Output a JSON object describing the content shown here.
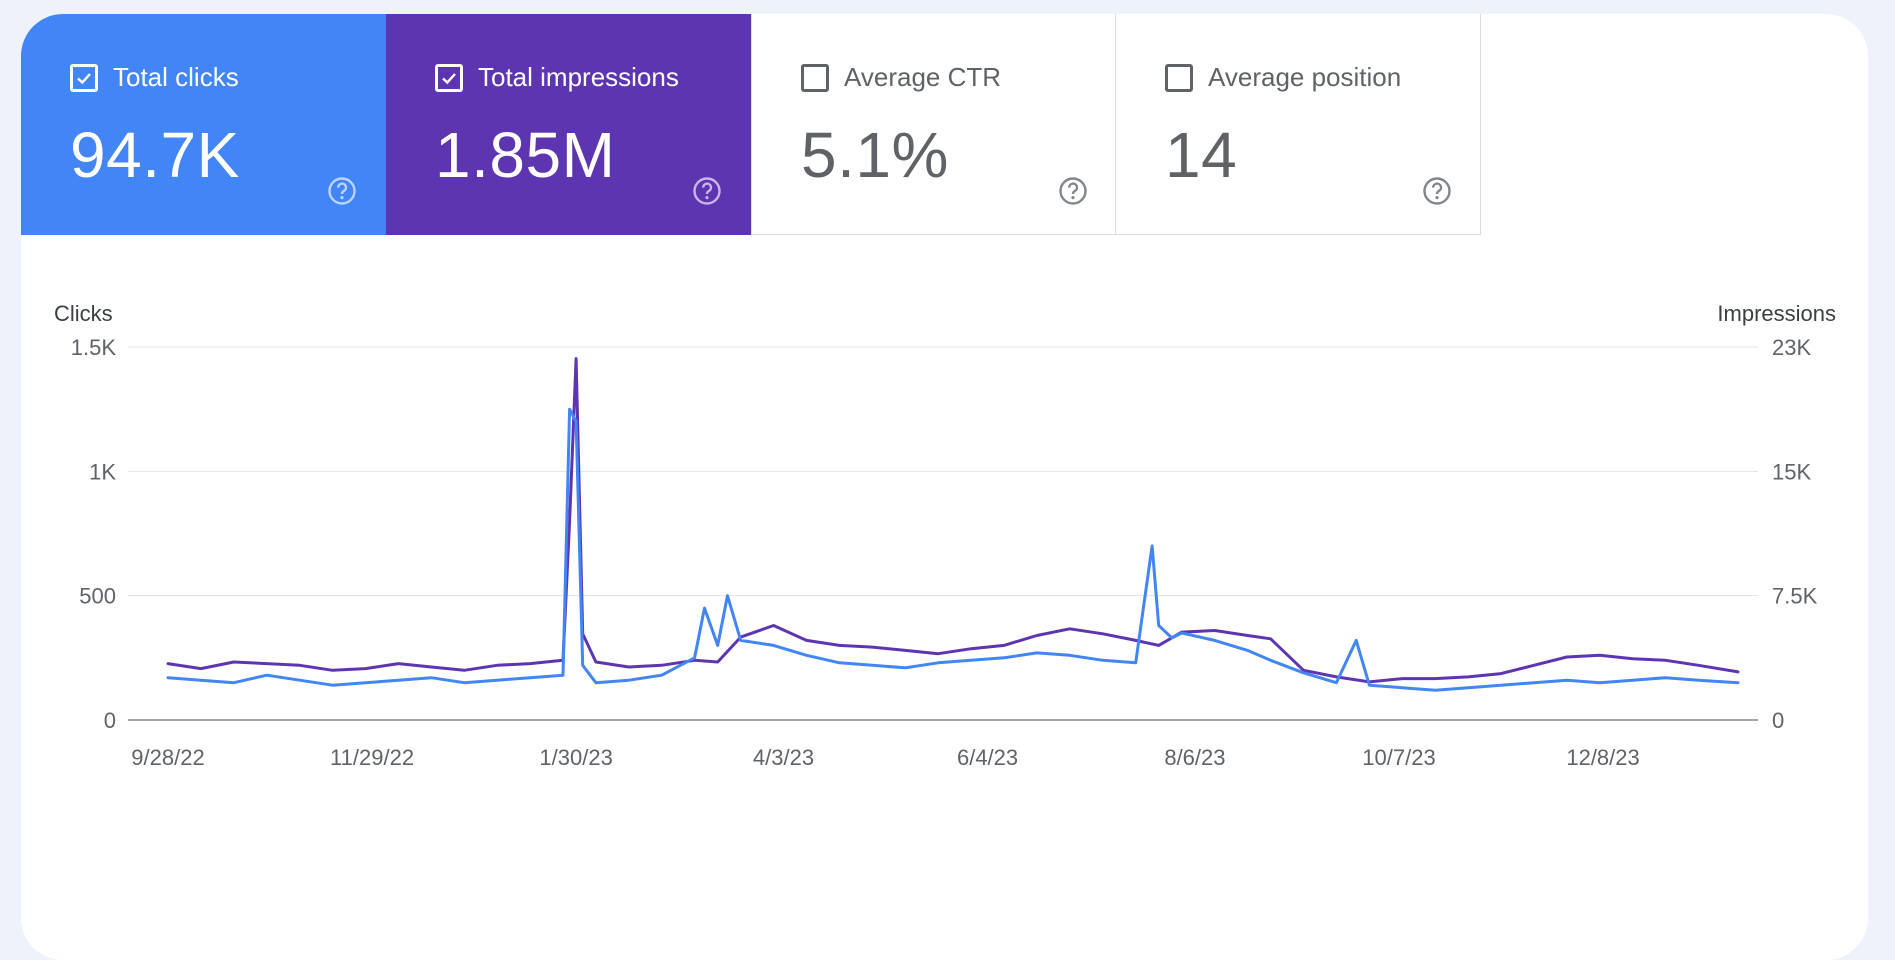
{
  "metrics": [
    {
      "label": "Total clicks",
      "value": "94.7K",
      "selected": true,
      "color": "#4285f4"
    },
    {
      "label": "Total impressions",
      "value": "1.85M",
      "selected": true,
      "color": "#5e35b1"
    },
    {
      "label": "Average CTR",
      "value": "5.1%",
      "selected": false
    },
    {
      "label": "Average position",
      "value": "14",
      "selected": false
    }
  ],
  "icons": {
    "checkbox_checked": "check-icon",
    "help": "help-circle-icon"
  },
  "chart_data": {
    "type": "line",
    "left_axis": {
      "title": "Clicks",
      "ticks": [
        "0",
        "500",
        "1K",
        "1.5K"
      ],
      "tick_values": [
        0,
        500,
        1000,
        1500
      ],
      "range": [
        0,
        1500
      ]
    },
    "right_axis": {
      "title": "Impressions",
      "ticks": [
        "0",
        "7.5K",
        "15K",
        "23K"
      ],
      "tick_values": [
        0,
        7500,
        15000,
        22500
      ],
      "range": [
        0,
        22500
      ]
    },
    "x_ticks": [
      "9/28/22",
      "11/29/22",
      "1/30/23",
      "4/3/23",
      "6/4/23",
      "8/6/23",
      "10/7/23",
      "12/8/23"
    ],
    "date_range": [
      "9/28/22",
      "1/18/24"
    ],
    "grid": true,
    "legend": "none",
    "series": [
      {
        "axis": "right",
        "color": "#5e35b1",
        "x": [
          "9/28/22",
          "10/8/22",
          "10/18/22",
          "10/28/22",
          "11/7/22",
          "11/17/22",
          "11/27/22",
          "12/7/22",
          "12/17/22",
          "12/27/22",
          "1/6/23",
          "1/16/23",
          "1/26/23",
          "1/28/23",
          "1/30/23",
          "2/1/23",
          "2/5/23",
          "2/15/23",
          "2/25/23",
          "3/7/23",
          "3/14/23",
          "3/21/23",
          "3/31/23",
          "4/10/23",
          "4/20/23",
          "4/30/23",
          "5/10/23",
          "5/20/23",
          "5/30/23",
          "6/9/23",
          "6/19/23",
          "6/29/23",
          "7/9/23",
          "7/19/23",
          "7/26/23",
          "8/2/23",
          "8/12/23",
          "8/22/23",
          "8/29/23",
          "9/8/23",
          "9/18/23",
          "9/28/23",
          "10/8/23",
          "10/18/23",
          "10/28/23",
          "11/7/23",
          "11/17/23",
          "11/27/23",
          "12/7/23",
          "12/17/23",
          "12/27/23",
          "1/6/24",
          "1/18/24"
        ],
        "y": [
          3400,
          3100,
          3500,
          3400,
          3300,
          3000,
          3100,
          3400,
          3200,
          3000,
          3300,
          3400,
          3600,
          12000,
          21800,
          5200,
          3500,
          3200,
          3300,
          3600,
          3500,
          5000,
          5700,
          4800,
          4500,
          4400,
          4200,
          4000,
          4300,
          4500,
          5100,
          5500,
          5200,
          4800,
          4500,
          5300,
          5400,
          5100,
          4900,
          3000,
          2600,
          2300,
          2500,
          2500,
          2600,
          2800,
          3300,
          3800,
          3900,
          3700,
          3600,
          3300,
          2900
        ]
      },
      {
        "axis": "left",
        "color": "#4285f4",
        "x": [
          "9/28/22",
          "10/8/22",
          "10/18/22",
          "10/28/22",
          "11/7/22",
          "11/17/22",
          "11/27/22",
          "12/7/22",
          "12/17/22",
          "12/27/22",
          "1/6/23",
          "1/16/23",
          "1/26/23",
          "1/28/23",
          "1/30/23",
          "2/1/23",
          "2/5/23",
          "2/15/23",
          "2/25/23",
          "3/7/23",
          "3/10/23",
          "3/14/23",
          "3/17/23",
          "3/21/23",
          "3/31/23",
          "4/10/23",
          "4/20/23",
          "4/30/23",
          "5/10/23",
          "5/20/23",
          "5/30/23",
          "6/9/23",
          "6/19/23",
          "6/29/23",
          "7/9/23",
          "7/19/23",
          "7/24/23",
          "7/26/23",
          "7/30/23",
          "8/2/23",
          "8/12/23",
          "8/22/23",
          "8/29/23",
          "9/8/23",
          "9/18/23",
          "9/24/23",
          "9/28/23",
          "10/8/23",
          "10/18/23",
          "10/28/23",
          "11/7/23",
          "11/17/23",
          "11/27/23",
          "12/7/23",
          "12/17/23",
          "12/27/23",
          "1/6/24",
          "1/18/24"
        ],
        "y": [
          170,
          160,
          150,
          180,
          160,
          140,
          150,
          160,
          170,
          150,
          160,
          170,
          180,
          1250,
          1200,
          220,
          150,
          160,
          180,
          250,
          450,
          300,
          500,
          320,
          300,
          260,
          230,
          220,
          210,
          230,
          240,
          250,
          270,
          260,
          240,
          230,
          700,
          380,
          330,
          350,
          320,
          280,
          240,
          190,
          150,
          320,
          140,
          130,
          120,
          130,
          140,
          150,
          160,
          150,
          160,
          170,
          160,
          150
        ]
      }
    ]
  }
}
